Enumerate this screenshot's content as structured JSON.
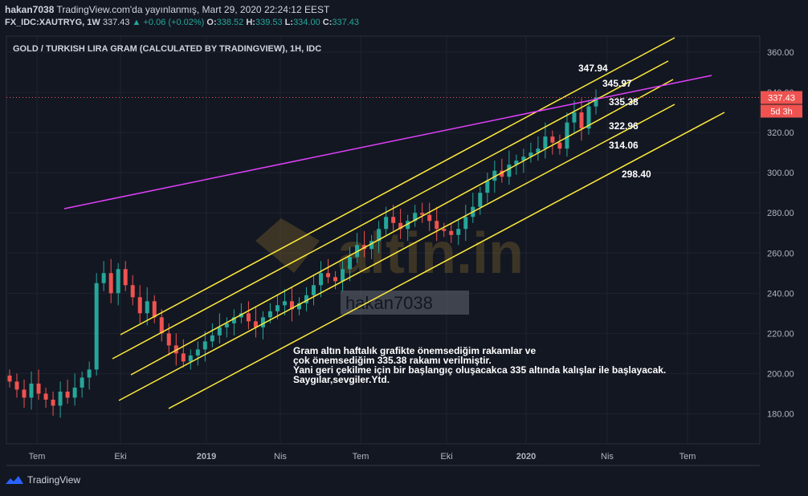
{
  "header": {
    "author": "hakan7038",
    "published": "TradingView.com'da yayınlanmış, Mart 29, 2020 22:24:12 EEST",
    "symbol": "FX_IDC:XAUTRYG, 1W",
    "last": "337.43",
    "change": "▲ +0.06 (+0.02%)",
    "o_label": "O:",
    "o": "338.52",
    "h_label": "H:",
    "h": "339.53",
    "l_label": "L:",
    "l": "334.00",
    "c_label": "C:",
    "c": "337.43"
  },
  "footer": {
    "brand": "TradingView"
  },
  "watermark": {
    "brand": "altin.in",
    "user": "hakan7038"
  },
  "note": "Gram altın haftalık grafikte önemsediğim rakamlar ve\nçok önemsediğim 335.38 rakamı verilmiştir.\nYani geri çekilme için bir başlangıç oluşacakca 335 altında kalışlar ile başlayacak.\nSaygılar,sevgiler.Ytd.",
  "colors": {
    "up": "#26a69a",
    "down": "#ef5350",
    "channel": "#ffeb3b",
    "trend": "#e040fb",
    "background": "#131722"
  },
  "chart_data": {
    "type": "candlestick",
    "title": "GOLD / TURKISH LIRA GRAM (CALCULATED BY TRADINGVIEW), 1H, IDC",
    "ylim": [
      165,
      368
    ],
    "y_ticks": [
      180,
      200,
      220,
      240,
      260,
      280,
      300,
      320,
      340,
      360
    ],
    "x_ticks": [
      "Tem",
      "Eki",
      "2019",
      "Nis",
      "Tem",
      "Eki",
      "2020",
      "Nis",
      "Tem"
    ],
    "last_price": "337.43",
    "countdown": "5d 3h",
    "level_labels": [
      "347.94",
      "345.97",
      "335.38",
      "322.96",
      "314.06",
      "298.40"
    ],
    "grid": true,
    "legend": "none",
    "weekly_closes": [
      196,
      192,
      188,
      195,
      190,
      187,
      184,
      191,
      188,
      193,
      198,
      202,
      245,
      250,
      240,
      252,
      244,
      238,
      230,
      236,
      228,
      220,
      214,
      210,
      206,
      209,
      212,
      216,
      219,
      223,
      225,
      228,
      230,
      226,
      223,
      228,
      231,
      234,
      236,
      232,
      235,
      239,
      244,
      250,
      248,
      246,
      252,
      258,
      264,
      262,
      266,
      272,
      278,
      275,
      272,
      276,
      280,
      279,
      276,
      272,
      271,
      269,
      272,
      278,
      283,
      290,
      296,
      301,
      298,
      304,
      306,
      308,
      310,
      312,
      318,
      315,
      312,
      325,
      330,
      322,
      333,
      337.43
    ]
  }
}
